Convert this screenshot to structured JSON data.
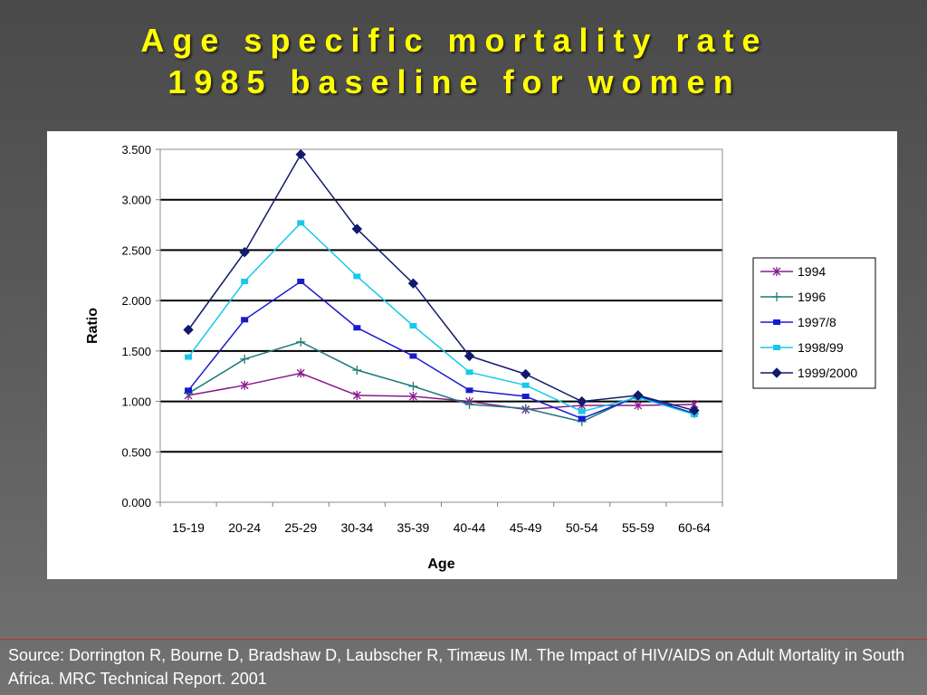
{
  "slide": {
    "title_line1": "Age specific mortality rate",
    "title_line2": "1985 baseline for women",
    "source": "Source: Dorrington R, Bourne D, Bradshaw D, Laubscher R, Timæus IM. The Impact of HIV/AIDS on Adult Mortality in South Africa. MRC Technical Report.  2001"
  },
  "colors": {
    "title": "#ffff00",
    "background": "#555555",
    "source_rule": "#c0322a"
  },
  "chart_data": {
    "type": "line",
    "title": "",
    "xlabel": "Age",
    "ylabel": "Ratio",
    "categories": [
      "15-19",
      "20-24",
      "25-29",
      "30-34",
      "35-39",
      "40-44",
      "45-49",
      "50-54",
      "55-59",
      "60-64"
    ],
    "ylim": [
      0,
      3.5
    ],
    "yticks": [
      "0.000",
      "0.500",
      "1.000",
      "1.500",
      "2.000",
      "2.500",
      "3.000",
      "3.500"
    ],
    "grid": true,
    "legend_position": "right",
    "series": [
      {
        "name": "1994",
        "color": "#8b1a8b",
        "marker": "asterisk",
        "values": [
          1.06,
          1.16,
          1.28,
          1.06,
          1.05,
          1.0,
          0.92,
          0.96,
          0.96,
          0.97
        ]
      },
      {
        "name": "1996",
        "color": "#1f7a7a",
        "marker": "plus",
        "values": [
          1.08,
          1.42,
          1.59,
          1.31,
          1.15,
          0.97,
          0.93,
          0.8,
          1.06,
          0.88
        ]
      },
      {
        "name": "1997/8",
        "color": "#1a1acc",
        "marker": "square",
        "values": [
          1.11,
          1.81,
          2.19,
          1.73,
          1.45,
          1.11,
          1.05,
          0.83,
          1.05,
          0.88
        ]
      },
      {
        "name": "1998/99",
        "color": "#19c8e8",
        "marker": "square",
        "values": [
          1.44,
          2.19,
          2.77,
          2.24,
          1.75,
          1.29,
          1.16,
          0.9,
          1.04,
          0.87
        ]
      },
      {
        "name": "1999/2000",
        "color": "#111a6b",
        "marker": "diamond",
        "values": [
          1.71,
          2.48,
          3.45,
          2.71,
          2.17,
          1.45,
          1.27,
          1.0,
          1.06,
          0.91
        ]
      }
    ]
  }
}
